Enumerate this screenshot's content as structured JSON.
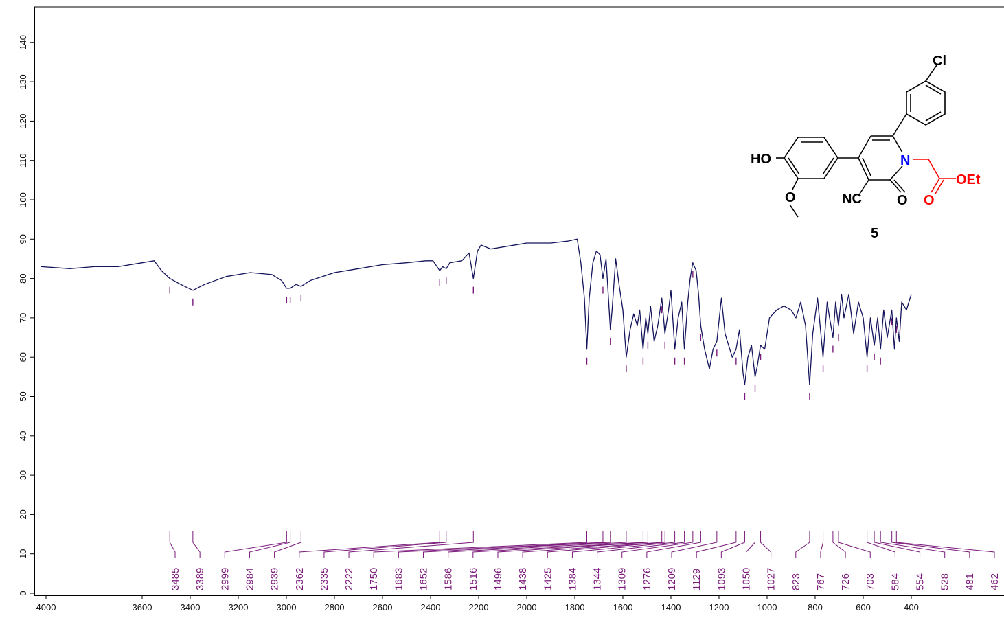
{
  "chart_data": {
    "type": "line",
    "title": "",
    "xlabel": "",
    "ylabel": "",
    "xlim": [
      4000,
      400
    ],
    "ylim": [
      0,
      145
    ],
    "x_ticks": [
      4000,
      3600,
      3400,
      3200,
      3000,
      2800,
      2600,
      2400,
      2200,
      2000,
      1800,
      1600,
      1400,
      1200,
      1000,
      800,
      600,
      400
    ],
    "y_ticks": [
      0,
      10,
      20,
      30,
      40,
      50,
      60,
      70,
      80,
      90,
      100,
      110,
      120,
      130,
      140
    ],
    "grid": false,
    "line_color": "#14145c",
    "peak_color": "#7a1a7a",
    "series": [
      {
        "x": [
          4020,
          3900,
          3800,
          3700,
          3600,
          3550,
          3520,
          3485,
          3440,
          3389,
          3340,
          3250,
          3150,
          3060,
          3020,
          2999,
          2984,
          2960,
          2939,
          2900,
          2800,
          2700,
          2600,
          2500,
          2420,
          2390,
          2362,
          2350,
          2335,
          2320,
          2270,
          2240,
          2222,
          2205,
          2190,
          2150,
          2100,
          2000,
          1900,
          1830,
          1790,
          1775,
          1760,
          1750,
          1740,
          1725,
          1710,
          1695,
          1683,
          1670,
          1652,
          1645,
          1630,
          1615,
          1600,
          1586,
          1570,
          1555,
          1540,
          1530,
          1516,
          1505,
          1496,
          1485,
          1470,
          1455,
          1438,
          1425,
          1410,
          1400,
          1384,
          1370,
          1355,
          1344,
          1330,
          1320,
          1309,
          1295,
          1285,
          1276,
          1260,
          1240,
          1225,
          1209,
          1190,
          1175,
          1160,
          1145,
          1129,
          1115,
          1100,
          1093,
          1080,
          1065,
          1050,
          1040,
          1027,
          1010,
          990,
          960,
          930,
          900,
          880,
          860,
          840,
          823,
          810,
          790,
          767,
          750,
          740,
          726,
          715,
          703,
          690,
          680,
          660,
          640,
          620,
          600,
          584,
          570,
          554,
          540,
          528,
          515,
          500,
          481,
          470,
          462,
          450,
          440,
          420,
          400
        ],
        "y": [
          83.0,
          82.5,
          83.0,
          83.0,
          84.0,
          84.5,
          82.0,
          80.0,
          78.5,
          77.0,
          78.5,
          80.5,
          81.5,
          81.0,
          79.5,
          77.5,
          77.5,
          78.5,
          78.0,
          79.5,
          81.5,
          82.5,
          83.5,
          84.0,
          84.5,
          84.5,
          82.0,
          83.0,
          82.5,
          84.0,
          84.5,
          86.5,
          80.0,
          87.0,
          88.5,
          87.5,
          88.0,
          89.0,
          89.0,
          89.5,
          90.0,
          84.0,
          75.0,
          62.0,
          75.0,
          84.0,
          87.0,
          86.0,
          80.0,
          85.0,
          67.0,
          72.0,
          85.0,
          78.0,
          72.0,
          60.0,
          67.0,
          71.0,
          68.0,
          72.0,
          62.0,
          70.0,
          66.0,
          73.0,
          64.0,
          68.0,
          75.0,
          66.0,
          72.0,
          77.0,
          62.0,
          70.0,
          74.0,
          62.0,
          74.0,
          80.0,
          84.0,
          82.0,
          76.0,
          68.0,
          62.0,
          57.0,
          62.0,
          64.0,
          75.0,
          66.0,
          63.0,
          60.0,
          62.0,
          67.0,
          56.0,
          53.0,
          60.0,
          63.0,
          55.0,
          58.0,
          63.0,
          62.0,
          70.0,
          72.0,
          73.0,
          72.0,
          70.0,
          74.0,
          68.0,
          53.0,
          66.0,
          75.0,
          60.0,
          74.0,
          70.0,
          65.0,
          74.0,
          68.0,
          76.0,
          70.0,
          76.0,
          66.0,
          74.0,
          70.0,
          60.0,
          70.0,
          63.0,
          70.0,
          62.0,
          72.0,
          65.0,
          72.0,
          62.0,
          70.0,
          64.0,
          74.0,
          72.0,
          76.0
        ]
      }
    ],
    "peaks": [
      "3485",
      "3389",
      "2999",
      "2984",
      "2939",
      "2362",
      "2335",
      "2222",
      "1750",
      "1683",
      "1652",
      "1586",
      "1516",
      "1496",
      "1438",
      "1425",
      "1384",
      "1344",
      "1309",
      "1276",
      "1209",
      "1129",
      "1093",
      "1050",
      "1027",
      "823",
      "767",
      "726",
      "703",
      "584",
      "554",
      "528",
      "481",
      "462"
    ]
  },
  "structure": {
    "compound_number": "5",
    "labels": {
      "cl": "Cl",
      "ho": "HO",
      "n": "N",
      "o_methoxy": "O",
      "nc": "NC",
      "o_carbonyl": "O",
      "o_ester": "O",
      "oet": "OEt"
    },
    "colors": {
      "bond": "#000000",
      "nitrogen": "#0000ff",
      "ester": "#ff0000"
    }
  }
}
